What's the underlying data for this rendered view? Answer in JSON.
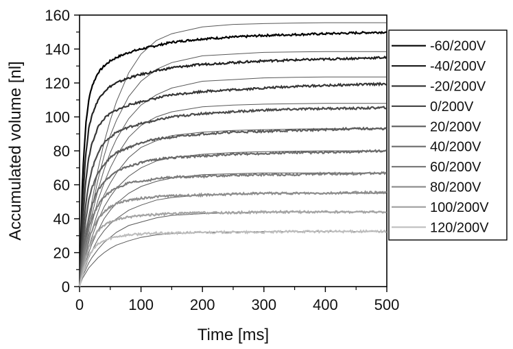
{
  "chart_data": {
    "type": "line",
    "title": "",
    "xlabel": "Time [ms]",
    "ylabel": "Accumulated volume [nl]",
    "xlim": [
      0,
      500
    ],
    "ylim": [
      0,
      160
    ],
    "x_ticks": [
      0,
      100,
      200,
      300,
      400,
      500
    ],
    "y_ticks": [
      0,
      20,
      40,
      60,
      80,
      100,
      120,
      140,
      160
    ],
    "x_tick_labels": [
      "0",
      "100",
      "200",
      "300",
      "400",
      "500"
    ],
    "y_tick_labels": [
      "0",
      "20",
      "40",
      "60",
      "80",
      "100",
      "120",
      "140",
      "160"
    ],
    "grid": false,
    "legend_position": "right",
    "x": [
      0,
      5,
      10,
      15,
      20,
      30,
      40,
      50,
      60,
      80,
      100,
      125,
      150,
      200,
      250,
      300,
      350,
      400,
      450,
      500
    ],
    "series": [
      {
        "name": "-60/200V",
        "color": "#000000",
        "values": [
          0,
          66,
          95,
          110,
          118,
          126,
          130,
          133,
          135,
          138,
          140,
          142,
          144,
          146,
          147,
          148,
          148.5,
          149,
          149.5,
          150
        ]
      },
      {
        "name": "-40/200V",
        "color": "#222222",
        "values": [
          0,
          50,
          78,
          93,
          101,
          110,
          115,
          118,
          120,
          123,
          125,
          127,
          129,
          131,
          132,
          133,
          133.5,
          134,
          134.5,
          135
        ]
      },
      {
        "name": "-20/200V",
        "color": "#373737",
        "values": [
          0,
          38,
          62,
          76,
          84,
          94,
          99,
          102,
          104,
          107,
          109,
          111,
          113,
          115,
          116,
          117,
          118,
          118.5,
          119,
          119.5
        ]
      },
      {
        "name": "0/200V",
        "color": "#4a4a4a",
        "values": [
          0,
          28,
          48,
          61,
          69,
          79,
          85,
          88,
          91,
          94,
          96,
          98,
          100,
          102,
          103,
          104,
          104.5,
          105,
          105,
          105.5
        ]
      },
      {
        "name": "20/200V",
        "color": "#5a5a5a",
        "values": [
          0,
          22,
          39,
          51,
          58,
          67,
          72,
          76,
          79,
          82,
          85,
          87,
          88,
          90,
          91,
          91.5,
          92,
          92.5,
          93,
          93
        ]
      },
      {
        "name": "40/200V",
        "color": "#6a6a6a",
        "values": [
          0,
          17,
          31,
          41,
          48,
          57,
          62,
          65,
          68,
          71,
          73,
          75,
          76,
          77,
          78,
          78.5,
          79,
          79,
          79.5,
          80
        ]
      },
      {
        "name": "60/200V",
        "color": "#7c7c7c",
        "values": [
          0,
          14,
          26,
          34,
          40,
          48,
          53,
          56,
          58,
          61,
          62,
          63.5,
          64.5,
          65,
          65.5,
          66,
          66,
          66.5,
          66.5,
          67
        ]
      },
      {
        "name": "80/200V",
        "color": "#8e8e8e",
        "values": [
          0,
          11,
          21,
          28,
          33,
          40,
          44,
          47,
          49,
          51,
          52,
          53,
          53.5,
          54,
          54.5,
          55,
          55,
          55,
          55.5,
          55.5
        ]
      },
      {
        "name": "100/200V",
        "color": "#a4a4a4",
        "values": [
          0,
          9,
          17,
          23,
          27,
          33,
          36,
          38,
          39.5,
          41,
          42,
          42.5,
          43,
          43.5,
          43.5,
          44,
          44,
          44,
          44,
          44
        ]
      },
      {
        "name": "120/200V",
        "color": "#bdbdbd",
        "values": [
          0,
          7,
          13,
          18,
          21,
          25,
          27,
          28.5,
          29.5,
          30.5,
          31,
          31.5,
          31.5,
          32,
          32,
          32,
          32.5,
          32.5,
          32.5,
          32.5
        ]
      }
    ],
    "fit_series": [
      {
        "values": [
          0,
          14,
          27,
          39,
          50,
          69,
          85,
          98,
          109,
          126,
          137,
          145,
          149,
          153,
          154.5,
          155,
          155.3,
          155.5,
          155.5,
          155.5
        ]
      },
      {
        "values": [
          0,
          13,
          25,
          36,
          46,
          63,
          77,
          89,
          98,
          112,
          121,
          128,
          132,
          136,
          137,
          138,
          138.3,
          138.5,
          138.5,
          138.5
        ]
      },
      {
        "values": [
          0,
          12,
          23,
          33,
          42,
          57,
          69,
          79,
          87,
          99,
          107,
          113,
          117,
          121,
          122,
          123,
          123.3,
          123.5,
          123.5,
          123.5
        ]
      },
      {
        "values": [
          0,
          11,
          21,
          30,
          37,
          51,
          61,
          70,
          77,
          88,
          95,
          100,
          103,
          106,
          107,
          107.5,
          107.8,
          108,
          108,
          108
        ]
      },
      {
        "values": [
          0,
          10,
          18,
          26,
          33,
          44,
          54,
          61,
          67,
          76,
          82,
          86,
          89,
          91,
          92,
          92.5,
          92.8,
          93,
          93,
          93
        ]
      },
      {
        "values": [
          0,
          9,
          16,
          23,
          29,
          39,
          47,
          53,
          58,
          65,
          70,
          74,
          76,
          78,
          79,
          79.5,
          79.8,
          80,
          80,
          80
        ]
      },
      {
        "values": [
          0,
          8,
          14,
          20,
          25,
          33,
          40,
          45,
          49,
          55,
          59,
          62,
          64,
          66,
          66.5,
          67,
          67,
          67,
          67,
          67
        ]
      },
      {
        "values": [
          0,
          7,
          12,
          17,
          21,
          28,
          33,
          37,
          40,
          45,
          48,
          51,
          52.5,
          54,
          54.5,
          55,
          55,
          55,
          55,
          55
        ]
      },
      {
        "values": [
          0,
          6,
          10,
          14,
          17,
          22,
          26,
          29,
          32,
          36,
          38,
          40.5,
          42,
          43,
          43.5,
          44,
          44,
          44,
          44,
          44
        ]
      },
      {
        "values": [
          0,
          5,
          8,
          11,
          13,
          17,
          20,
          22.5,
          24.5,
          27,
          29,
          30.5,
          31.2,
          32,
          32.2,
          32.4,
          32.5,
          32.5,
          32.5,
          32.5
        ]
      }
    ]
  }
}
